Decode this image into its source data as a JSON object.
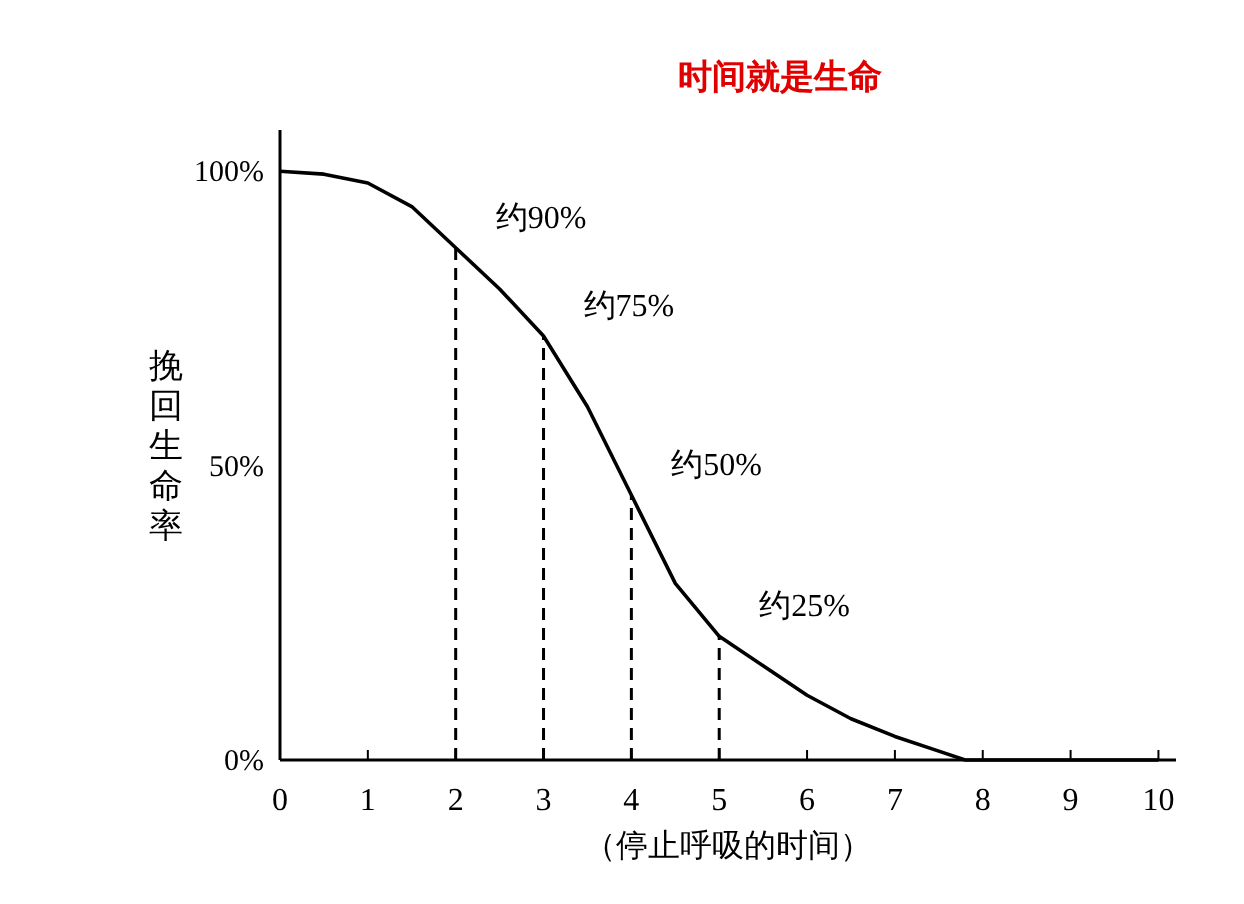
{
  "chart_data": {
    "type": "line",
    "title": "时间就是生命",
    "xlabel": "（停止呼吸的时间）",
    "ylabel": "挽回生命率",
    "x": [
      0,
      0.5,
      1,
      1.5,
      2,
      2.5,
      3,
      3.5,
      4,
      4.5,
      5,
      5.5,
      6,
      6.5,
      7,
      7.5,
      7.8,
      8,
      9,
      10
    ],
    "series": [
      {
        "color": "#000000",
        "values": [
          100,
          99.5,
          98,
          94,
          87,
          80,
          72,
          60,
          45,
          30,
          21,
          16,
          11,
          7,
          4,
          1.5,
          0,
          0,
          0,
          0
        ]
      }
    ],
    "xlim": [
      0,
      10.2
    ],
    "ylim": [
      0,
      107
    ],
    "xticks": [
      0,
      1,
      2,
      3,
      4,
      5,
      6,
      7,
      8,
      9,
      10
    ],
    "yticks": [
      {
        "value": 0,
        "label": "0%"
      },
      {
        "value": 50,
        "label": "50%"
      },
      {
        "value": 100,
        "label": "100%"
      }
    ],
    "ref_lines": [
      {
        "axis": "x",
        "value": 2,
        "label": "约90%",
        "line_style": "dashed"
      },
      {
        "axis": "x",
        "value": 3,
        "label": "约75%",
        "line_style": "dashed"
      },
      {
        "axis": "x",
        "value": 4,
        "label": "约50%",
        "line_style": "dashed"
      },
      {
        "axis": "x",
        "value": 5,
        "label": "约25%",
        "line_style": "dashed"
      }
    ],
    "marker": "none",
    "line_style": "solid"
  }
}
